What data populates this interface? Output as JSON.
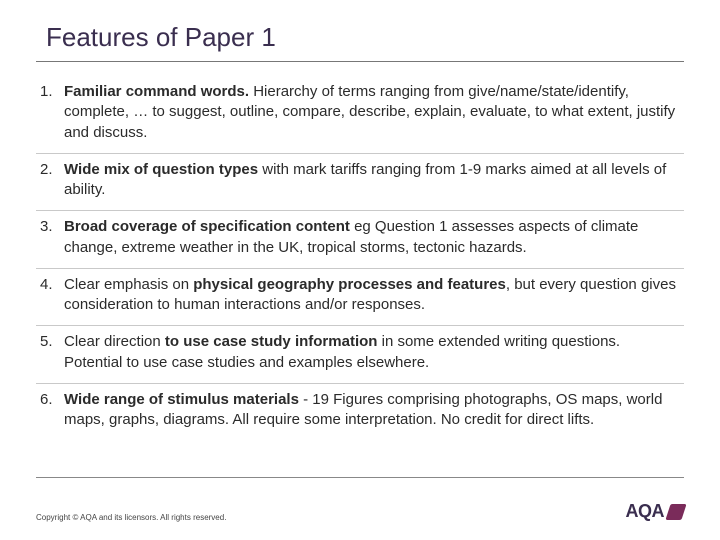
{
  "title": "Features of Paper 1",
  "items": [
    {
      "num": "1.",
      "lead_bold": "Familiar command words.",
      "lead_plain": "",
      "rest": " Hierarchy of terms ranging from give/name/state/identify, complete, … to suggest, outline, compare, describe, explain, evaluate, to what extent, justify and discuss."
    },
    {
      "num": "2.",
      "lead_bold": "Wide mix of question types",
      "lead_plain": "",
      "rest": " with mark tariffs ranging from 1-9 marks aimed at all levels of ability."
    },
    {
      "num": "3.",
      "lead_bold": "Broad coverage of specification content",
      "lead_plain": "",
      "rest": " eg Question 1 assesses aspects of climate change, extreme weather in the UK, tropical storms, tectonic hazards."
    },
    {
      "num": "4.",
      "lead_bold": "",
      "lead_plain": "Clear emphasis on ",
      "mid_bold": "physical geography processes and features",
      "rest": ", but every question gives consideration to human interactions and/or responses."
    },
    {
      "num": "5.",
      "lead_bold": "",
      "lead_plain": "Clear direction ",
      "mid_bold": "to use case study information",
      "rest": " in some extended writing questions. Potential to use case studies and examples elsewhere."
    },
    {
      "num": "6.",
      "lead_bold": "Wide range of stimulus materials",
      "lead_plain": "",
      "rest": " - 19 Figures comprising photographs, OS maps, world maps, graphs, diagrams. All require some interpretation. No credit for direct lifts."
    }
  ],
  "copyright": "Copyright © AQA and its licensors. All rights reserved.",
  "logo_text": "AQA"
}
